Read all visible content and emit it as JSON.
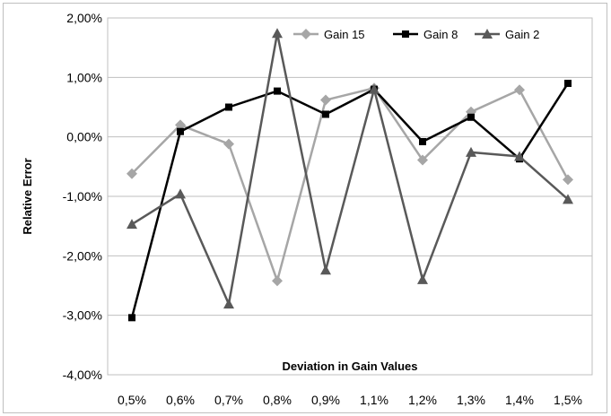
{
  "chart_data": {
    "type": "line",
    "title": "",
    "xlabel": "Deviation in Gain Values",
    "ylabel": "Relative Error",
    "categories": [
      "0,5%",
      "0,6%",
      "0,7%",
      "0,8%",
      "0,9%",
      "1,1%",
      "1,2%",
      "1,3%",
      "1,4%",
      "1,5%"
    ],
    "y_ticks": [
      2,
      1,
      0,
      -1,
      -2,
      -3,
      -4
    ],
    "y_tick_labels": [
      "2,00%",
      "1,00%",
      "0,00%",
      "-1,00%",
      "-2,00%",
      "-3,00%",
      "-4,00%"
    ],
    "ylim": [
      -4,
      2
    ],
    "y_unit": "%",
    "grid": "horizontal",
    "legend_position": "top-right",
    "series": [
      {
        "name": "Gain 15",
        "color": "#a6a6a6",
        "marker": "diamond",
        "values": [
          -0.62,
          0.2,
          -0.12,
          -2.42,
          0.62,
          0.82,
          -0.39,
          0.42,
          0.79,
          -0.72
        ]
      },
      {
        "name": "Gain 8",
        "color": "#000000",
        "marker": "square",
        "values": [
          -3.04,
          0.09,
          0.5,
          0.77,
          0.38,
          0.8,
          -0.08,
          0.33,
          -0.37,
          0.9
        ]
      },
      {
        "name": "Gain 2",
        "color": "#595959",
        "marker": "triangle",
        "values": [
          -1.47,
          -0.96,
          -2.81,
          1.74,
          -2.24,
          0.8,
          -2.4,
          -0.26,
          -0.33,
          -1.05
        ]
      }
    ]
  }
}
